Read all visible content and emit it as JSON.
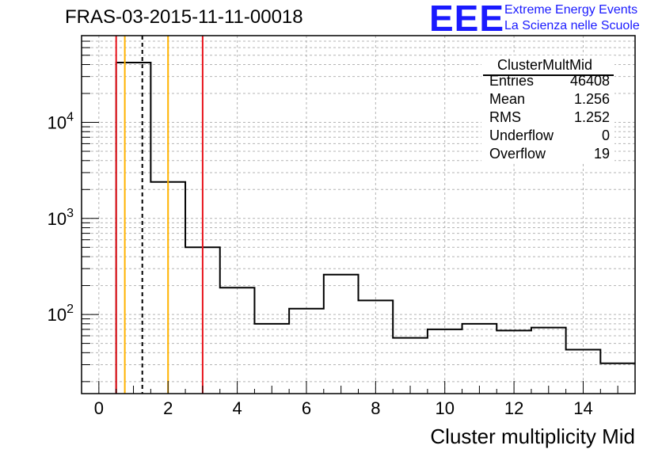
{
  "header": {
    "title": "FRAS-03-2015-11-11-00018"
  },
  "logo": {
    "mark": "EEE",
    "line1": "Extreme Energy Events",
    "line2": "La Scienza nelle Scuole"
  },
  "stats": {
    "name": "ClusterMultMid",
    "rows": [
      {
        "key": "Entries",
        "value": "46408"
      },
      {
        "key": "Mean",
        "value": "1.256"
      },
      {
        "key": "RMS",
        "value": "1.252"
      },
      {
        "key": "Underflow",
        "value": "0"
      },
      {
        "key": "Overflow",
        "value": "19"
      }
    ]
  },
  "colors": {
    "red_line": "#e8141c",
    "orange_line": "#ffb300",
    "grid": "#b4b4b4",
    "logo": "#1a1aff"
  },
  "chart_data": {
    "type": "histogram",
    "xlabel": "Cluster multiplicity Mid",
    "ylabel": "",
    "xlim": [
      -0.5,
      15.5
    ],
    "ylim": [
      15,
      80000
    ],
    "yscale": "log",
    "grid": true,
    "x_ticks": [
      "0",
      "2",
      "4",
      "6",
      "8",
      "10",
      "12",
      "14"
    ],
    "y_ticks": [
      {
        "base": "10",
        "exp": "2",
        "value": 100
      },
      {
        "base": "10",
        "exp": "3",
        "value": 1000
      },
      {
        "base": "10",
        "exp": "4",
        "value": 10000
      }
    ],
    "bins": [
      {
        "lo": 0.5,
        "hi": 1.5,
        "count": 42000
      },
      {
        "lo": 1.5,
        "hi": 2.5,
        "count": 2400
      },
      {
        "lo": 2.5,
        "hi": 3.5,
        "count": 500
      },
      {
        "lo": 3.5,
        "hi": 4.5,
        "count": 190
      },
      {
        "lo": 4.5,
        "hi": 5.5,
        "count": 80
      },
      {
        "lo": 5.5,
        "hi": 6.5,
        "count": 115
      },
      {
        "lo": 6.5,
        "hi": 7.5,
        "count": 260
      },
      {
        "lo": 7.5,
        "hi": 8.5,
        "count": 140
      },
      {
        "lo": 8.5,
        "hi": 9.5,
        "count": 57
      },
      {
        "lo": 9.5,
        "hi": 10.5,
        "count": 70
      },
      {
        "lo": 10.5,
        "hi": 11.5,
        "count": 80
      },
      {
        "lo": 11.5,
        "hi": 12.5,
        "count": 68
      },
      {
        "lo": 12.5,
        "hi": 13.5,
        "count": 73
      },
      {
        "lo": 13.5,
        "hi": 14.5,
        "count": 43
      },
      {
        "lo": 14.5,
        "hi": 15.5,
        "count": 31
      }
    ],
    "vlines": [
      {
        "x": 0.5,
        "color": "#e8141c",
        "style": "solid"
      },
      {
        "x": 0.75,
        "color": "#ffb300",
        "style": "solid"
      },
      {
        "x": 1.256,
        "color": "#000000",
        "style": "dashed"
      },
      {
        "x": 2.0,
        "color": "#ffb300",
        "style": "solid"
      },
      {
        "x": 3.0,
        "color": "#e8141c",
        "style": "solid"
      }
    ]
  }
}
